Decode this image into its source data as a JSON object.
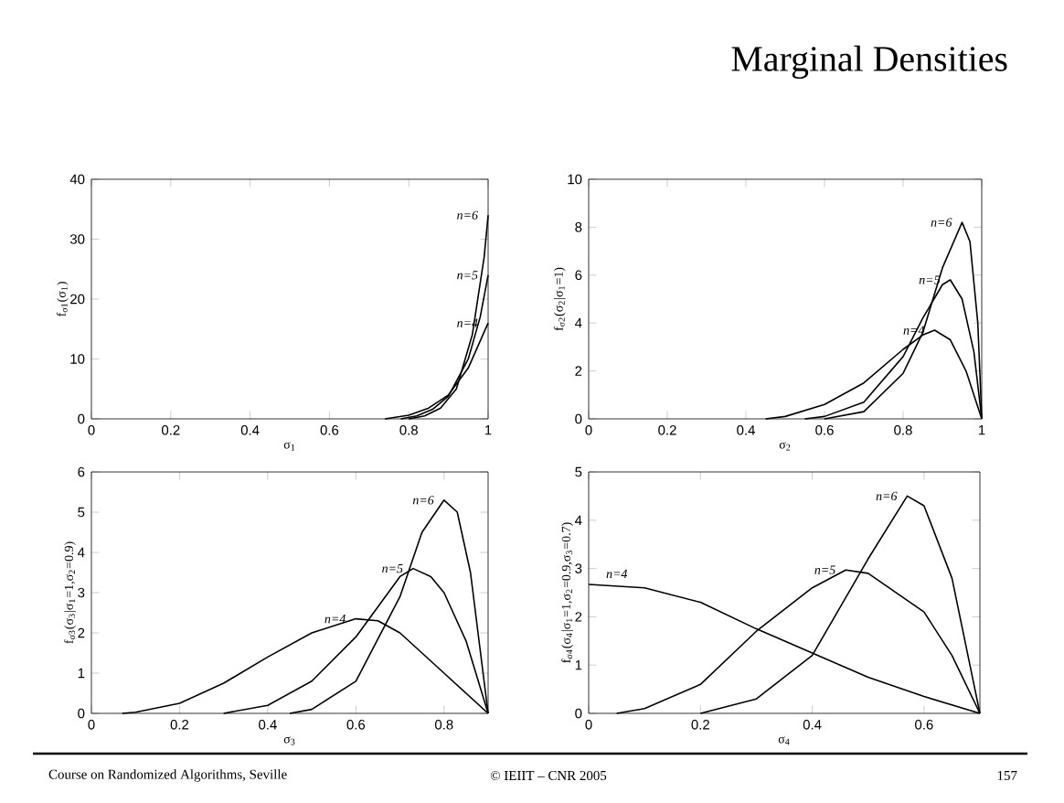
{
  "chart_data": [
    {
      "type": "line",
      "xlabel": "σ$_{1}$",
      "ylabel": "f$_{σ1}$(σ$_{1}$)",
      "xlim": [
        0,
        1
      ],
      "ylim": [
        0,
        40
      ],
      "xticks": [
        0,
        0.2,
        0.4,
        0.6,
        0.8,
        1
      ],
      "yticks": [
        0,
        10,
        20,
        30,
        40
      ],
      "series": [
        {
          "name": "n=4",
          "color": "#000000",
          "x": [
            0.74,
            0.8,
            0.85,
            0.9,
            0.95,
            1
          ],
          "values": [
            0,
            0.6,
            1.8,
            4,
            8.5,
            16
          ]
        },
        {
          "name": "n=5",
          "color": "#000000",
          "x": [
            0.78,
            0.82,
            0.86,
            0.9,
            0.95,
            0.98,
            1
          ],
          "values": [
            0,
            0.5,
            1.6,
            3.8,
            10,
            17,
            24
          ]
        },
        {
          "name": "n=6",
          "color": "#000000",
          "x": [
            0.8,
            0.84,
            0.88,
            0.92,
            0.96,
            0.99,
            1
          ],
          "values": [
            0,
            0.5,
            1.8,
            5,
            14,
            27,
            34
          ]
        }
      ]
    },
    {
      "type": "line",
      "title": "Marginal Densities",
      "xlabel": "σ$_{2}$",
      "ylabel": "f$_{σ2}$(σ$_{2}$|σ$_{1}$=1)",
      "xlim": [
        0,
        1
      ],
      "ylim": [
        0,
        10
      ],
      "xticks": [
        0,
        0.2,
        0.4,
        0.6,
        0.8,
        1
      ],
      "yticks": [
        0,
        2,
        4,
        6,
        8,
        10
      ],
      "series": [
        {
          "name": "n=4",
          "color": "#000000",
          "x": [
            0.45,
            0.5,
            0.6,
            0.7,
            0.8,
            0.85,
            0.88,
            0.92,
            0.96,
            1
          ],
          "values": [
            0,
            0.1,
            0.6,
            1.5,
            2.9,
            3.5,
            3.7,
            3.3,
            2,
            0
          ]
        },
        {
          "name": "n=5",
          "color": "#000000",
          "x": [
            0.55,
            0.6,
            0.7,
            0.8,
            0.85,
            0.9,
            0.92,
            0.95,
            0.98,
            1
          ],
          "values": [
            0,
            0.1,
            0.7,
            2.6,
            4.2,
            5.6,
            5.8,
            5,
            2.8,
            0
          ]
        },
        {
          "name": "n=6",
          "color": "#000000",
          "x": [
            0.6,
            0.7,
            0.8,
            0.85,
            0.9,
            0.95,
            0.97,
            0.99,
            1
          ],
          "values": [
            0,
            0.3,
            1.9,
            3.6,
            6.3,
            8.2,
            7.4,
            4,
            0
          ]
        }
      ]
    },
    {
      "type": "line",
      "xlabel": "σ$_{3}$",
      "ylabel": "f$_{σ3}$(σ$_{3}$|σ$_{1}$=1,σ$_{2}$=0.9)",
      "xlim": [
        0,
        0.9
      ],
      "ylim": [
        0,
        6
      ],
      "xticks": [
        0,
        0.2,
        0.4,
        0.6,
        0.8
      ],
      "yticks": [
        0,
        1,
        2,
        3,
        4,
        5,
        6
      ],
      "annotations": [
        "Course on Randomized Algorithms, Seville"
      ],
      "series": [
        {
          "name": "n=4",
          "color": "#000000",
          "x": [
            0.07,
            0.1,
            0.2,
            0.3,
            0.4,
            0.5,
            0.6,
            0.65,
            0.7,
            0.8,
            0.9
          ],
          "values": [
            0,
            0.03,
            0.25,
            0.75,
            1.4,
            2.0,
            2.35,
            2.3,
            2.0,
            1.0,
            0
          ]
        },
        {
          "name": "n=5",
          "color": "#000000",
          "x": [
            0.3,
            0.4,
            0.5,
            0.6,
            0.7,
            0.73,
            0.77,
            0.8,
            0.85,
            0.9
          ],
          "values": [
            0,
            0.2,
            0.8,
            1.9,
            3.4,
            3.6,
            3.4,
            3.0,
            1.8,
            0
          ]
        },
        {
          "name": "n=6",
          "color": "#000000",
          "x": [
            0.45,
            0.5,
            0.6,
            0.7,
            0.75,
            0.8,
            0.83,
            0.86,
            0.9
          ],
          "values": [
            0,
            0.1,
            0.8,
            2.9,
            4.5,
            5.3,
            5.0,
            3.5,
            0
          ]
        }
      ]
    },
    {
      "type": "line",
      "xlabel": "σ$_{4}$",
      "ylabel": "f$_{σ4}$(σ$_{4}$|σ$_{1}$=1,σ$_{2}$=0.9,σ$_{3}$=0.7)",
      "xlim": [
        0,
        0.7
      ],
      "ylim": [
        0,
        5
      ],
      "xticks": [
        0,
        0.2,
        0.4,
        0.6
      ],
      "yticks": [
        0,
        1,
        2,
        3,
        4,
        5
      ],
      "annotations": [
        "© IEIIT – CNR 2005",
        "157"
      ],
      "series": [
        {
          "name": "n=4",
          "color": "#000000",
          "x": [
            0,
            0.1,
            0.2,
            0.3,
            0.4,
            0.5,
            0.6,
            0.7
          ],
          "values": [
            2.67,
            2.6,
            2.3,
            1.75,
            1.25,
            0.75,
            0.35,
            0
          ]
        },
        {
          "name": "n=5",
          "color": "#000000",
          "x": [
            0.05,
            0.1,
            0.2,
            0.3,
            0.4,
            0.46,
            0.5,
            0.6,
            0.65,
            0.7
          ],
          "values": [
            0,
            0.1,
            0.6,
            1.7,
            2.6,
            2.97,
            2.9,
            2.1,
            1.2,
            0
          ]
        },
        {
          "name": "n=6",
          "color": "#000000",
          "x": [
            0.2,
            0.3,
            0.4,
            0.5,
            0.57,
            0.6,
            0.65,
            0.7
          ],
          "values": [
            0,
            0.3,
            1.2,
            3.2,
            4.5,
            4.3,
            2.8,
            0
          ]
        }
      ]
    }
  ]
}
